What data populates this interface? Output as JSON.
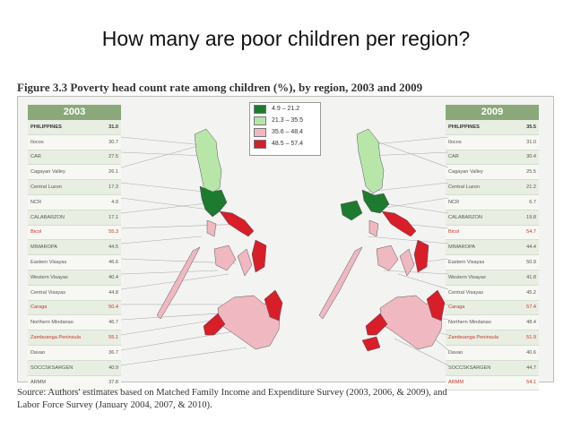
{
  "slide": {
    "title": "How many are poor children per region?"
  },
  "figure": {
    "caption": "Figure 3.3 Poverty head count rate among children (%), by region, 2003 and 2009",
    "source_line1": "Source: Authors' estimates based on Matched Family Income and Expenditure Survey (2003, 2006, & 2009), and",
    "source_line2": "Labor Force Survey (January 2004, 2007, & 2010)."
  },
  "legend": [
    {
      "label": "4.9 – 21.2",
      "color": "#1e7a2e"
    },
    {
      "label": "21.3 – 35.5",
      "color": "#b8e6a8"
    },
    {
      "label": "35.6 – 48.4",
      "color": "#f0b8c0"
    },
    {
      "label": "48.5 – 57.4",
      "color": "#d81e28"
    }
  ],
  "table_2003": {
    "year": "2003",
    "rows": [
      {
        "region": "PHILIPPINES",
        "value": "31.0"
      },
      {
        "region": "Ilocos",
        "value": "30.7"
      },
      {
        "region": "CAR",
        "value": "27.5"
      },
      {
        "region": "Cagayan Valley",
        "value": "26.1"
      },
      {
        "region": "Central Luzon",
        "value": "17.3"
      },
      {
        "region": "NCR",
        "value": "4.9"
      },
      {
        "region": "CALABARZON",
        "value": "17.1"
      },
      {
        "region": "Bicol",
        "value": "55.3"
      },
      {
        "region": "MIMAROPA",
        "value": "44.5"
      },
      {
        "region": "Eastern Visayas",
        "value": "46.6"
      },
      {
        "region": "Western Visayas",
        "value": "40.4"
      },
      {
        "region": "Central Visayas",
        "value": "44.8"
      },
      {
        "region": "Caraga",
        "value": "50.4"
      },
      {
        "region": "Northern Mindanao",
        "value": "46.7"
      },
      {
        "region": "Zamboanga Peninsula",
        "value": "55.1"
      },
      {
        "region": "Davao",
        "value": "36.7"
      },
      {
        "region": "SOCCSKSARGEN",
        "value": "40.9"
      },
      {
        "region": "ARMM",
        "value": "37.8"
      }
    ]
  },
  "table_2009": {
    "year": "2009",
    "rows": [
      {
        "region": "PHILIPPINES",
        "value": "35.5"
      },
      {
        "region": "Ilocos",
        "value": "31.0"
      },
      {
        "region": "CAR",
        "value": "30.4"
      },
      {
        "region": "Cagayan Valley",
        "value": "25.5"
      },
      {
        "region": "Central Luzon",
        "value": "21.2"
      },
      {
        "region": "NCR",
        "value": "6.7"
      },
      {
        "region": "CALABARZON",
        "value": "19.8"
      },
      {
        "region": "Bicol",
        "value": "54.7"
      },
      {
        "region": "MIMAROPA",
        "value": "44.4"
      },
      {
        "region": "Eastern Visayas",
        "value": "50.9"
      },
      {
        "region": "Western Visayas",
        "value": "41.8"
      },
      {
        "region": "Central Visayas",
        "value": "45.2"
      },
      {
        "region": "Caraga",
        "value": "57.4"
      },
      {
        "region": "Northern Mindanao",
        "value": "48.4"
      },
      {
        "region": "Zamboanga Peninsula",
        "value": "51.9"
      },
      {
        "region": "Davao",
        "value": "40.6"
      },
      {
        "region": "SOCCSKSARGEN",
        "value": "44.7"
      },
      {
        "region": "ARMM",
        "value": "54.1"
      }
    ]
  }
}
